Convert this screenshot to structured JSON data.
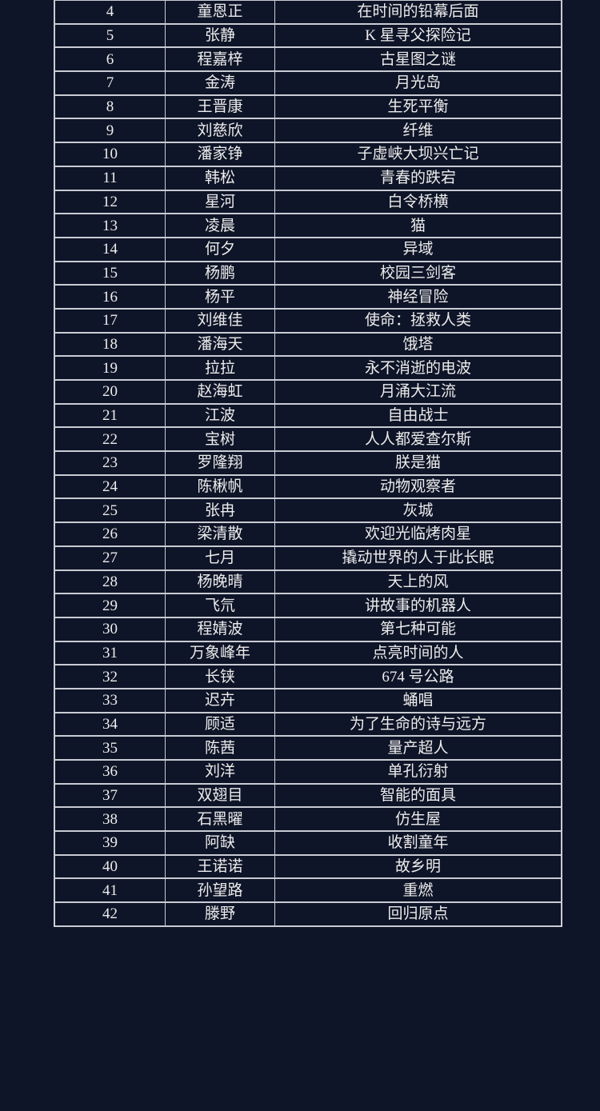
{
  "table": {
    "rows": [
      {
        "no": "4",
        "author": "童恩正",
        "title": "在时间的铅幕后面"
      },
      {
        "no": "5",
        "author": "张静",
        "title": "K 星寻父探险记"
      },
      {
        "no": "6",
        "author": "程嘉梓",
        "title": "古星图之谜"
      },
      {
        "no": "7",
        "author": "金涛",
        "title": "月光岛"
      },
      {
        "no": "8",
        "author": "王晋康",
        "title": "生死平衡"
      },
      {
        "no": "9",
        "author": "刘慈欣",
        "title": "纤维"
      },
      {
        "no": "10",
        "author": "潘家铮",
        "title": "子虚峡大坝兴亡记"
      },
      {
        "no": "11",
        "author": "韩松",
        "title": "青春的跌宕"
      },
      {
        "no": "12",
        "author": "星河",
        "title": "白令桥横"
      },
      {
        "no": "13",
        "author": "凌晨",
        "title": "猫"
      },
      {
        "no": "14",
        "author": "何夕",
        "title": "异域"
      },
      {
        "no": "15",
        "author": "杨鹏",
        "title": "校园三剑客"
      },
      {
        "no": "16",
        "author": "杨平",
        "title": "神经冒险"
      },
      {
        "no": "17",
        "author": "刘维佳",
        "title": "使命：拯救人类"
      },
      {
        "no": "18",
        "author": "潘海天",
        "title": "饿塔"
      },
      {
        "no": "19",
        "author": "拉拉",
        "title": "永不消逝的电波"
      },
      {
        "no": "20",
        "author": "赵海虹",
        "title": "月涌大江流"
      },
      {
        "no": "21",
        "author": "江波",
        "title": "自由战士"
      },
      {
        "no": "22",
        "author": "宝树",
        "title": "人人都爱查尔斯"
      },
      {
        "no": "23",
        "author": "罗隆翔",
        "title": "朕是猫"
      },
      {
        "no": "24",
        "author": "陈楸帆",
        "title": "动物观察者"
      },
      {
        "no": "25",
        "author": "张冉",
        "title": "灰城"
      },
      {
        "no": "26",
        "author": "梁清散",
        "title": "欢迎光临烤肉星"
      },
      {
        "no": "27",
        "author": "七月",
        "title": "撬动世界的人于此长眠"
      },
      {
        "no": "28",
        "author": "杨晚晴",
        "title": "天上的风"
      },
      {
        "no": "29",
        "author": "飞氘",
        "title": "讲故事的机器人"
      },
      {
        "no": "30",
        "author": "程婧波",
        "title": "第七种可能"
      },
      {
        "no": "31",
        "author": "万象峰年",
        "title": "点亮时间的人"
      },
      {
        "no": "32",
        "author": "长铗",
        "title": "674 号公路"
      },
      {
        "no": "33",
        "author": "迟卉",
        "title": "蛹唱"
      },
      {
        "no": "34",
        "author": "顾适",
        "title": "为了生命的诗与远方"
      },
      {
        "no": "35",
        "author": "陈茜",
        "title": "量产超人"
      },
      {
        "no": "36",
        "author": "刘洋",
        "title": "单孔衍射"
      },
      {
        "no": "37",
        "author": "双翅目",
        "title": "智能的面具"
      },
      {
        "no": "38",
        "author": "石黑曜",
        "title": "仿生屋"
      },
      {
        "no": "39",
        "author": "阿缺",
        "title": "收割童年"
      },
      {
        "no": "40",
        "author": "王诺诺",
        "title": "故乡明"
      },
      {
        "no": "41",
        "author": "孙望路",
        "title": "重燃"
      },
      {
        "no": "42",
        "author": "滕野",
        "title": "回归原点"
      }
    ]
  },
  "colors": {
    "background": "#0f1528",
    "grid": "#c9ccd3",
    "text": "#ececec"
  }
}
